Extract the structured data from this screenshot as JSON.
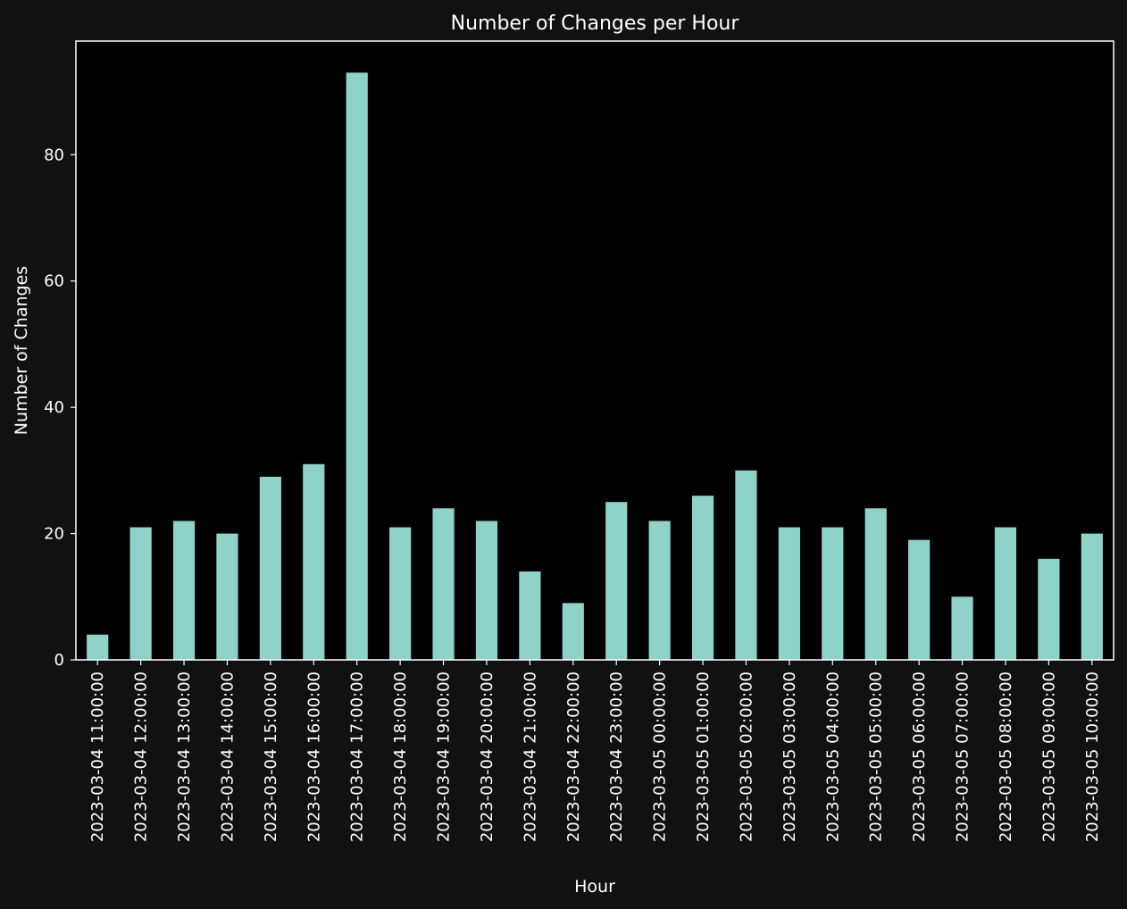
{
  "chart_data": {
    "type": "bar",
    "title": "Number of Changes per Hour",
    "xlabel": "Hour",
    "ylabel": "Number of Changes",
    "ylim": [
      0,
      98
    ],
    "yticks": [
      0,
      20,
      40,
      60,
      80
    ],
    "grid": false,
    "legend": "none",
    "bar_color": "#8dd3c7",
    "plot_background": "#000000",
    "figure_background": "#111111",
    "categories": [
      "2023-03-04 11:00:00",
      "2023-03-04 12:00:00",
      "2023-03-04 13:00:00",
      "2023-03-04 14:00:00",
      "2023-03-04 15:00:00",
      "2023-03-04 16:00:00",
      "2023-03-04 17:00:00",
      "2023-03-04 18:00:00",
      "2023-03-04 19:00:00",
      "2023-03-04 20:00:00",
      "2023-03-04 21:00:00",
      "2023-03-04 22:00:00",
      "2023-03-04 23:00:00",
      "2023-03-05 00:00:00",
      "2023-03-05 01:00:00",
      "2023-03-05 02:00:00",
      "2023-03-05 03:00:00",
      "2023-03-05 04:00:00",
      "2023-03-05 05:00:00",
      "2023-03-05 06:00:00",
      "2023-03-05 07:00:00",
      "2023-03-05 08:00:00",
      "2023-03-05 09:00:00",
      "2023-03-05 10:00:00"
    ],
    "values": [
      4,
      21,
      22,
      20,
      29,
      31,
      93,
      21,
      24,
      22,
      14,
      9,
      25,
      22,
      26,
      30,
      21,
      21,
      24,
      19,
      10,
      21,
      16,
      20
    ]
  }
}
